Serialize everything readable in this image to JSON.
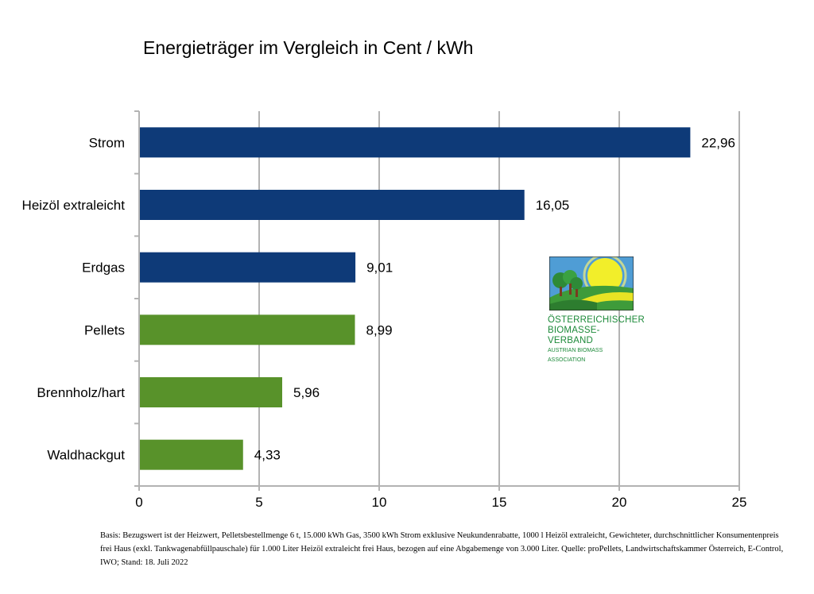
{
  "chart_data": {
    "type": "bar",
    "orientation": "horizontal",
    "title": "Energieträger im Vergleich in Cent / kWh",
    "categories": [
      "Strom",
      "Heizöl extraleicht",
      "Erdgas",
      "Pellets",
      "Brennholz/hart",
      "Waldhackgut"
    ],
    "values": [
      22.96,
      16.05,
      9.01,
      8.99,
      5.96,
      4.33
    ],
    "value_labels": [
      "22,96",
      "16,05",
      "9,01",
      "8,99",
      "5,96",
      "4,33"
    ],
    "colors": [
      "#0e3a78",
      "#0e3a78",
      "#0e3a78",
      "#58922a",
      "#58922a",
      "#58922a"
    ],
    "xlim": [
      0,
      25
    ],
    "x_ticks": [
      0,
      5,
      10,
      15,
      20,
      25
    ],
    "grid": true,
    "xlabel": "",
    "ylabel": ""
  },
  "logo": {
    "line1": "Österreichischer",
    "line2": "Biomasse-Verband",
    "line3": "Austrian Biomass Association"
  },
  "footnote": "Basis: Bezugswert ist der Heizwert, Pelletsbestellmenge 6 t, 15.000 kWh Gas, 3500 kWh Strom exklusive Neukundenrabatte, 1000 l Heizöl extraleicht, Gewichteter, durchschnittlicher Konsumentenpreis frei Haus (exkl. Tankwagenabfüllpauschale) für 1.000 Liter Heizöl extraleicht frei Haus, bezogen auf eine Abgabemenge von 3.000 Liter. Quelle: proPellets, Landwirtschaftskammer Österreich, E-Control, IWO; Stand: 18. Juli 2022"
}
